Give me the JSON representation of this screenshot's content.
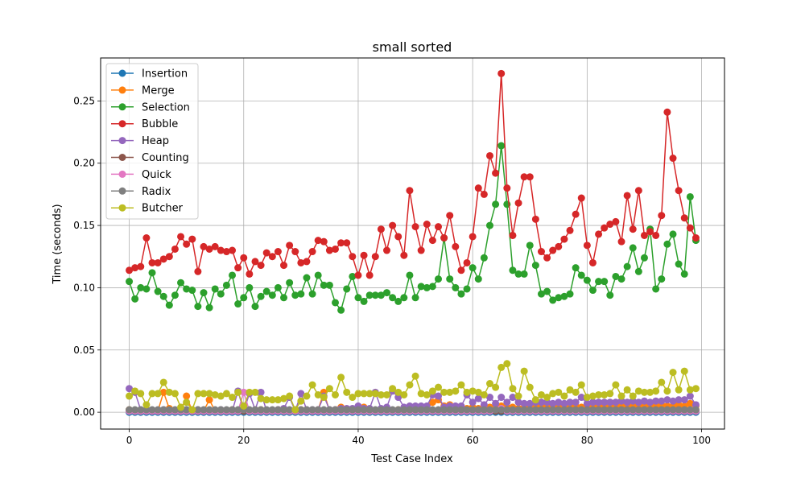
{
  "chart_data": {
    "type": "line",
    "title": "small sorted",
    "xlabel": "Test Case Index",
    "ylabel": "Time (seconds)",
    "xlim": [
      -5,
      104
    ],
    "ylim": [
      -0.0135,
      0.2845
    ],
    "xticks": [
      0,
      20,
      40,
      60,
      80,
      100
    ],
    "yticks": [
      0.0,
      0.05,
      0.1,
      0.15,
      0.2,
      0.25
    ],
    "ytick_labels": [
      "0.00",
      "0.05",
      "0.10",
      "0.15",
      "0.20",
      "0.25"
    ],
    "grid": true,
    "legend_position": "top-left",
    "x": [
      0,
      1,
      2,
      3,
      4,
      5,
      6,
      7,
      8,
      9,
      10,
      11,
      12,
      13,
      14,
      15,
      16,
      17,
      18,
      19,
      20,
      21,
      22,
      23,
      24,
      25,
      26,
      27,
      28,
      29,
      30,
      31,
      32,
      33,
      34,
      35,
      36,
      37,
      38,
      39,
      40,
      41,
      42,
      43,
      44,
      45,
      46,
      47,
      48,
      49,
      50,
      51,
      52,
      53,
      54,
      55,
      56,
      57,
      58,
      59,
      60,
      61,
      62,
      63,
      64,
      65,
      66,
      67,
      68,
      69,
      70,
      71,
      72,
      73,
      74,
      75,
      76,
      77,
      78,
      79,
      80,
      81,
      82,
      83,
      84,
      85,
      86,
      87,
      88,
      89,
      90,
      91,
      92,
      93,
      94,
      95,
      96,
      97,
      98,
      99
    ],
    "series": [
      {
        "name": "Insertion",
        "color": "#1f77b4",
        "values": [
          0,
          0,
          0,
          0,
          0,
          0,
          0,
          0,
          0,
          0,
          0,
          0,
          0,
          0,
          0,
          0,
          0,
          0,
          0,
          0,
          0,
          0,
          0,
          0,
          0,
          0,
          0,
          0,
          0,
          0,
          0,
          0,
          0,
          0,
          0,
          0,
          0,
          0,
          0,
          0,
          0,
          0,
          0,
          0,
          0,
          0,
          0,
          0,
          0,
          0,
          0,
          0,
          0,
          0,
          0,
          0,
          0,
          0,
          0,
          0,
          0,
          0,
          0,
          0,
          0,
          0,
          0,
          0,
          0,
          0,
          0,
          0,
          0,
          0,
          0,
          0,
          0,
          0,
          0,
          0,
          0,
          0,
          0,
          0,
          0,
          0,
          0,
          0,
          0,
          0,
          0,
          0,
          0,
          0,
          0,
          0,
          0,
          0,
          0,
          0
        ]
      },
      {
        "name": "Merge",
        "color": "#ff7f0e",
        "values": [
          0.002,
          0.001,
          0.001,
          0.002,
          0.001,
          0.001,
          0.016,
          0.003,
          0.001,
          0.001,
          0.013,
          0.001,
          0.001,
          0.001,
          0.01,
          0.001,
          0.001,
          0.001,
          0.002,
          0.001,
          0.001,
          0.001,
          0.001,
          0.002,
          0.001,
          0.001,
          0.002,
          0.001,
          0.001,
          0.001,
          0.002,
          0.001,
          0.001,
          0.002,
          0.016,
          0.001,
          0.002,
          0.004,
          0.002,
          0.002,
          0.002,
          0.004,
          0.001,
          0.001,
          0.002,
          0.002,
          0.001,
          0.002,
          0.002,
          0.001,
          0.003,
          0.002,
          0.002,
          0.008,
          0.01,
          0.005,
          0.006,
          0.004,
          0.002,
          0.003,
          0.004,
          0.003,
          0.003,
          0.004,
          0.004,
          0.005,
          0.004,
          0.004,
          0.003,
          0.004,
          0.003,
          0.004,
          0.005,
          0.004,
          0.004,
          0.004,
          0.003,
          0.004,
          0.005,
          0.004,
          0.004,
          0.004,
          0.005,
          0.005,
          0.005,
          0.004,
          0.005,
          0.004,
          0.005,
          0.004,
          0.005,
          0.005,
          0.005,
          0.006,
          0.005,
          0.005,
          0.006,
          0.005,
          0.007,
          0.005
        ]
      },
      {
        "name": "Selection",
        "color": "#2ca02c",
        "values": [
          0.105,
          0.091,
          0.1,
          0.099,
          0.112,
          0.097,
          0.093,
          0.086,
          0.094,
          0.104,
          0.099,
          0.098,
          0.085,
          0.096,
          0.084,
          0.099,
          0.095,
          0.102,
          0.11,
          0.087,
          0.092,
          0.1,
          0.085,
          0.093,
          0.097,
          0.094,
          0.1,
          0.092,
          0.104,
          0.094,
          0.095,
          0.108,
          0.095,
          0.11,
          0.102,
          0.102,
          0.088,
          0.082,
          0.099,
          0.109,
          0.092,
          0.089,
          0.094,
          0.094,
          0.094,
          0.096,
          0.092,
          0.089,
          0.092,
          0.11,
          0.092,
          0.101,
          0.1,
          0.101,
          0.107,
          0.14,
          0.107,
          0.1,
          0.095,
          0.099,
          0.116,
          0.107,
          0.124,
          0.15,
          0.167,
          0.214,
          0.167,
          0.114,
          0.111,
          0.111,
          0.134,
          0.118,
          0.095,
          0.097,
          0.09,
          0.092,
          0.093,
          0.095,
          0.116,
          0.11,
          0.106,
          0.098,
          0.105,
          0.105,
          0.094,
          0.109,
          0.107,
          0.117,
          0.132,
          0.113,
          0.124,
          0.147,
          0.099,
          0.107,
          0.135,
          0.143,
          0.119,
          0.111,
          0.173,
          0.138
        ]
      },
      {
        "name": "Bubble",
        "color": "#d62728",
        "values": [
          0.114,
          0.116,
          0.117,
          0.14,
          0.12,
          0.12,
          0.123,
          0.125,
          0.131,
          0.141,
          0.135,
          0.139,
          0.113,
          0.133,
          0.131,
          0.133,
          0.13,
          0.129,
          0.13,
          0.116,
          0.124,
          0.111,
          0.121,
          0.118,
          0.128,
          0.125,
          0.129,
          0.118,
          0.134,
          0.129,
          0.12,
          0.121,
          0.129,
          0.138,
          0.137,
          0.13,
          0.131,
          0.136,
          0.136,
          0.125,
          0.11,
          0.126,
          0.11,
          0.125,
          0.147,
          0.13,
          0.15,
          0.141,
          0.126,
          0.178,
          0.149,
          0.13,
          0.151,
          0.138,
          0.149,
          0.14,
          0.158,
          0.133,
          0.114,
          0.12,
          0.141,
          0.18,
          0.175,
          0.206,
          0.192,
          0.272,
          0.18,
          0.142,
          0.168,
          0.189,
          0.189,
          0.155,
          0.129,
          0.124,
          0.13,
          0.133,
          0.139,
          0.146,
          0.159,
          0.172,
          0.134,
          0.12,
          0.143,
          0.148,
          0.151,
          0.153,
          0.137,
          0.174,
          0.147,
          0.178,
          0.142,
          0.145,
          0.142,
          0.158,
          0.241,
          0.204,
          0.178,
          0.156,
          0.148,
          0.14
        ]
      },
      {
        "name": "Heap",
        "color": "#9467bd",
        "values": [
          0.019,
          0.016,
          0.002,
          0.002,
          0.001,
          0.001,
          0.002,
          0.001,
          0.001,
          0.001,
          0.002,
          0.001,
          0.002,
          0.001,
          0.001,
          0.001,
          0.002,
          0.001,
          0.001,
          0.017,
          0.001,
          0.015,
          0.002,
          0.016,
          0.001,
          0.001,
          0.002,
          0.003,
          0.012,
          0.001,
          0.015,
          0.002,
          0.002,
          0.002,
          0.013,
          0.002,
          0.002,
          0.003,
          0.003,
          0.003,
          0.005,
          0.003,
          0.003,
          0.016,
          0.003,
          0.004,
          0.017,
          0.012,
          0.004,
          0.005,
          0.005,
          0.005,
          0.005,
          0.014,
          0.013,
          0.004,
          0.005,
          0.005,
          0.005,
          0.014,
          0.008,
          0.011,
          0.006,
          0.012,
          0.007,
          0.012,
          0.008,
          0.012,
          0.008,
          0.007,
          0.007,
          0.008,
          0.008,
          0.008,
          0.007,
          0.008,
          0.007,
          0.008,
          0.008,
          0.012,
          0.007,
          0.008,
          0.008,
          0.008,
          0.008,
          0.008,
          0.009,
          0.008,
          0.009,
          0.008,
          0.009,
          0.008,
          0.009,
          0.009,
          0.01,
          0.009,
          0.01,
          0.01,
          0.013,
          0.006
        ]
      },
      {
        "name": "Counting",
        "color": "#8c564b",
        "values": [
          0.001,
          0.001,
          0.001,
          0.001,
          0.001,
          0.001,
          0.001,
          0.001,
          0.001,
          0.001,
          0.001,
          0.001,
          0.001,
          0.001,
          0.001,
          0.001,
          0.001,
          0.001,
          0.001,
          0.001,
          0.001,
          0.001,
          0.001,
          0.001,
          0.001,
          0.001,
          0.001,
          0.001,
          0.001,
          0.001,
          0.001,
          0.001,
          0.001,
          0.001,
          0.001,
          0.001,
          0.001,
          0.001,
          0.001,
          0.001,
          0.001,
          0.001,
          0.001,
          0.001,
          0.001,
          0.001,
          0.001,
          0.001,
          0.001,
          0.001,
          0.001,
          0.001,
          0.001,
          0.001,
          0.001,
          0.001,
          0.001,
          0.001,
          0.001,
          0.001,
          0.001,
          0.001,
          0.001,
          0.001,
          0.001,
          0.001,
          0.001,
          0.001,
          0.001,
          0.001,
          0.001,
          0.001,
          0.001,
          0.001,
          0.001,
          0.001,
          0.001,
          0.001,
          0.001,
          0.001,
          0.001,
          0.001,
          0.001,
          0.001,
          0.001,
          0.001,
          0.001,
          0.001,
          0.001,
          0.001,
          0.001,
          0.001,
          0.001,
          0.001,
          0.001,
          0.001,
          0.001,
          0.001,
          0.001,
          0.001
        ]
      },
      {
        "name": "Quick",
        "color": "#e377c2",
        "values": [
          0.001,
          0.001,
          0.001,
          0.001,
          0.001,
          0.001,
          0.001,
          0.001,
          0.001,
          0.001,
          0.001,
          0.001,
          0.001,
          0.001,
          0.001,
          0.001,
          0.001,
          0.001,
          0.001,
          0.001,
          0.016,
          0.001,
          0.001,
          0.001,
          0.001,
          0.001,
          0.001,
          0.001,
          0.001,
          0.001,
          0.001,
          0.001,
          0.001,
          0.001,
          0.001,
          0.001,
          0.001,
          0.001,
          0.001,
          0.001,
          0.001,
          0.001,
          0.001,
          0.001,
          0.001,
          0.001,
          0.001,
          0.001,
          0.001,
          0.001,
          0.001,
          0.001,
          0.001,
          0.001,
          0.001,
          0.001,
          0.001,
          0.001,
          0.001,
          0.001,
          0.001,
          0.001,
          0.001,
          0.001,
          0.002,
          0.003,
          0.001,
          0.001,
          0.001,
          0.001,
          0.001,
          0.001,
          0.001,
          0.001,
          0.001,
          0.001,
          0.001,
          0.001,
          0.001,
          0.001,
          0.001,
          0.001,
          0.001,
          0.001,
          0.001,
          0.001,
          0.001,
          0.001,
          0.001,
          0.001,
          0.001,
          0.001,
          0.001,
          0.001,
          0.001,
          0.001,
          0.001,
          0.001,
          0.001,
          0.001
        ]
      },
      {
        "name": "Radix",
        "color": "#7f7f7f",
        "values": [
          0.002,
          0.002,
          0.002,
          0.002,
          0.002,
          0.002,
          0.002,
          0.002,
          0.002,
          0.002,
          0.002,
          0.002,
          0.002,
          0.002,
          0.002,
          0.002,
          0.002,
          0.002,
          0.002,
          0.002,
          0.002,
          0.002,
          0.002,
          0.002,
          0.002,
          0.002,
          0.002,
          0.002,
          0.002,
          0.002,
          0.002,
          0.002,
          0.002,
          0.002,
          0.002,
          0.002,
          0.002,
          0.002,
          0.002,
          0.002,
          0.002,
          0.002,
          0.002,
          0.002,
          0.002,
          0.002,
          0.002,
          0.002,
          0.002,
          0.002,
          0.002,
          0.002,
          0.002,
          0.002,
          0.002,
          0.002,
          0.002,
          0.002,
          0.002,
          0.002,
          0.002,
          0.002,
          0.002,
          0.002,
          0.002,
          0.002,
          0.002,
          0.002,
          0.002,
          0.002,
          0.002,
          0.002,
          0.002,
          0.002,
          0.002,
          0.002,
          0.002,
          0.002,
          0.002,
          0.002,
          0.002,
          0.002,
          0.002,
          0.002,
          0.002,
          0.002,
          0.002,
          0.002,
          0.002,
          0.002,
          0.002,
          0.002,
          0.002,
          0.002,
          0.002,
          0.002,
          0.002,
          0.002,
          0.002,
          0.002
        ]
      },
      {
        "name": "Butcher",
        "color": "#bcbd22",
        "values": [
          0.013,
          0.017,
          0.015,
          0.006,
          0.015,
          0.015,
          0.024,
          0.016,
          0.015,
          0.004,
          0.008,
          0.002,
          0.015,
          0.015,
          0.015,
          0.014,
          0.013,
          0.015,
          0.012,
          0.016,
          0.005,
          0.016,
          0.016,
          0.011,
          0.01,
          0.01,
          0.01,
          0.011,
          0.013,
          0.002,
          0.009,
          0.013,
          0.022,
          0.014,
          0.012,
          0.019,
          0.014,
          0.028,
          0.016,
          0.012,
          0.015,
          0.015,
          0.015,
          0.015,
          0.014,
          0.014,
          0.019,
          0.016,
          0.014,
          0.022,
          0.029,
          0.015,
          0.014,
          0.017,
          0.02,
          0.016,
          0.016,
          0.017,
          0.022,
          0.016,
          0.017,
          0.016,
          0.014,
          0.023,
          0.02,
          0.036,
          0.039,
          0.019,
          0.013,
          0.033,
          0.02,
          0.01,
          0.014,
          0.012,
          0.015,
          0.016,
          0.013,
          0.018,
          0.016,
          0.022,
          0.012,
          0.013,
          0.014,
          0.014,
          0.015,
          0.022,
          0.013,
          0.018,
          0.013,
          0.017,
          0.016,
          0.016,
          0.017,
          0.024,
          0.017,
          0.032,
          0.018,
          0.033,
          0.018,
          0.019
        ]
      }
    ]
  }
}
